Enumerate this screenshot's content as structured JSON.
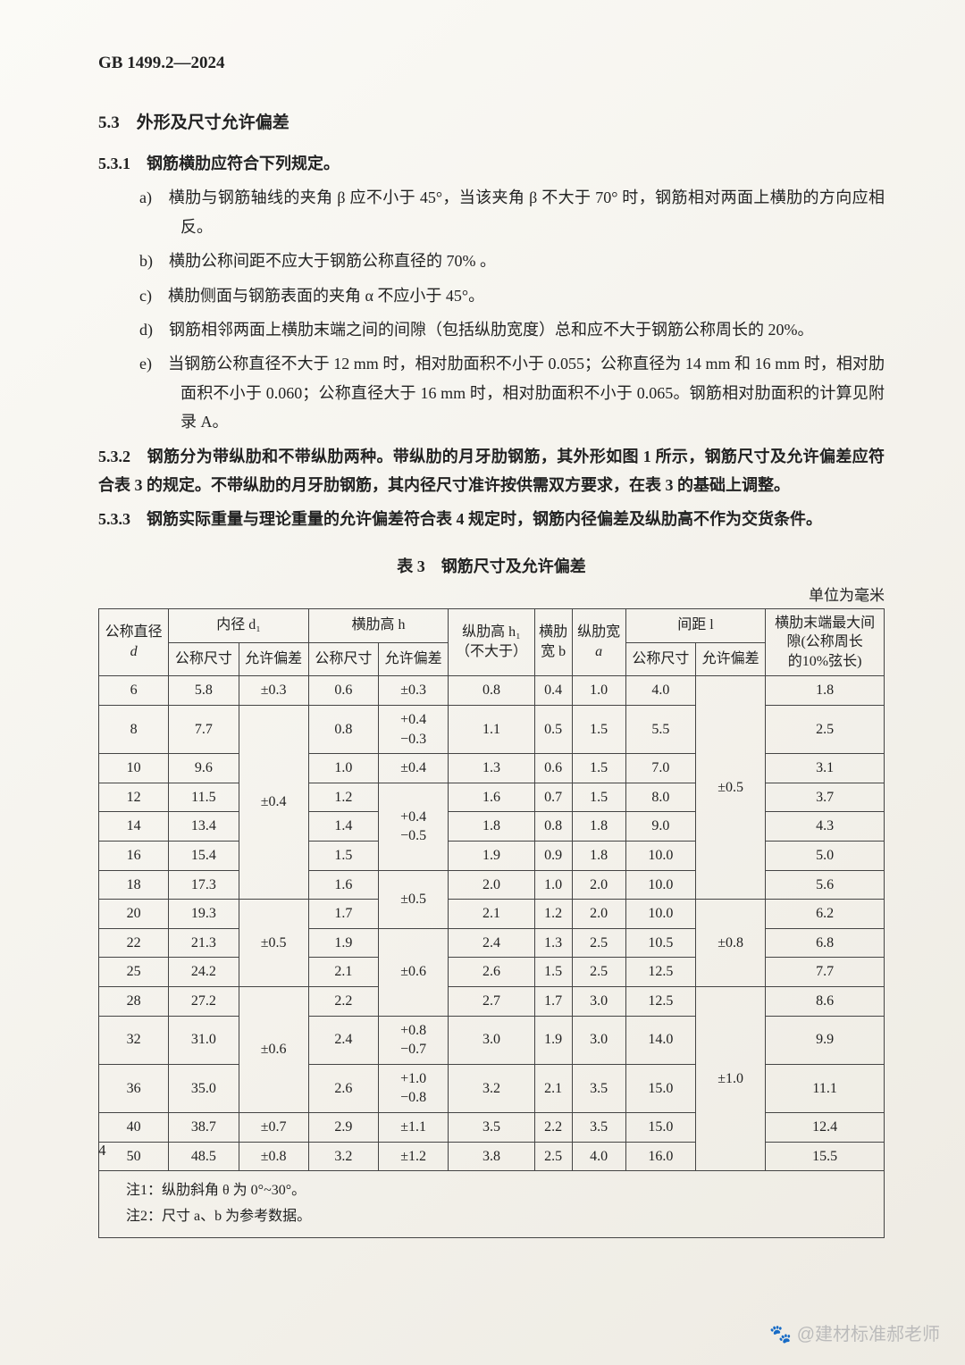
{
  "doc_code": "GB 1499.2—2024",
  "section": {
    "num": "5.3",
    "title": "外形及尺寸允许偏差"
  },
  "p531_lead": "5.3.1　钢筋横肋应符合下列规定。",
  "items": {
    "a": "a)　横肋与钢筋轴线的夹角 β 应不小于 45°，当该夹角 β 不大于 70° 时，钢筋相对两面上横肋的方向应相反。",
    "b": "b)　横肋公称间距不应大于钢筋公称直径的 70% 。",
    "c": "c)　横肋侧面与钢筋表面的夹角 α 不应小于 45°。",
    "d": "d)　钢筋相邻两面上横肋末端之间的间隙（包括纵肋宽度）总和应不大于钢筋公称周长的 20%。",
    "e": "e)　当钢筋公称直径不大于 12 mm 时，相对肋面积不小于 0.055；公称直径为 14 mm 和 16 mm 时，相对肋面积不小于 0.060；公称直径大于 16 mm 时，相对肋面积不小于 0.065。钢筋相对肋面积的计算见附录 A。"
  },
  "p532": "5.3.2　钢筋分为带纵肋和不带纵肋两种。带纵肋的月牙肋钢筋，其外形如图 1 所示，钢筋尺寸及允许偏差应符合表 3 的规定。不带纵肋的月牙肋钢筋，其内径尺寸准许按供需双方要求，在表 3 的基础上调整。",
  "p533": "5.3.3　钢筋实际重量与理论重量的允许偏差符合表 4 规定时，钢筋内径偏差及纵肋高不作为交货条件。",
  "table": {
    "title": "表 3　钢筋尺寸及允许偏差",
    "unit": "单位为毫米",
    "head": {
      "c1": "公称直径",
      "c1sub": "d",
      "c2": "内径 d₁",
      "c2a": "公称尺寸",
      "c2b": "允许偏差",
      "c3": "横肋高 h",
      "c3a": "公称尺寸",
      "c3b": "允许偏差",
      "c4a": "纵肋高 h₁",
      "c4b": "（不大于）",
      "c5a": "横肋",
      "c5b": "宽 b",
      "c6a": "纵肋宽",
      "c6b": "a",
      "c7": "间距 l",
      "c7a": "公称尺寸",
      "c7b": "允许偏差",
      "c8a": "横肋末端最大间",
      "c8b": "隙(公称周长",
      "c8c": "的10%弦长)"
    },
    "tol_d1": {
      "g1": "±0.3",
      "g2": "±0.4",
      "g3": "±0.5",
      "g4": "±0.6",
      "g5": "±0.7",
      "g6": "±0.8"
    },
    "tol_h": {
      "r6": "±0.3",
      "r8": "+0.4\n−0.3",
      "r10": "±0.4",
      "r12_16": "+0.4\n−0.5",
      "r18_20": "±0.5",
      "r22_28": "±0.6",
      "r32": "+0.8\n−0.7",
      "r36": "+1.0\n−0.8",
      "r40": "±1.1",
      "r50": "±1.2"
    },
    "tol_l": {
      "g1": "±0.5",
      "g2": "±0.8",
      "g3": "±1.0"
    },
    "rows": [
      {
        "d": "6",
        "d1": "5.8",
        "h": "0.6",
        "h1": "0.8",
        "b": "0.4",
        "a": "1.0",
        "l": "4.0",
        "gap": "1.8"
      },
      {
        "d": "8",
        "d1": "7.7",
        "h": "0.8",
        "h1": "1.1",
        "b": "0.5",
        "a": "1.5",
        "l": "5.5",
        "gap": "2.5"
      },
      {
        "d": "10",
        "d1": "9.6",
        "h": "1.0",
        "h1": "1.3",
        "b": "0.6",
        "a": "1.5",
        "l": "7.0",
        "gap": "3.1"
      },
      {
        "d": "12",
        "d1": "11.5",
        "h": "1.2",
        "h1": "1.6",
        "b": "0.7",
        "a": "1.5",
        "l": "8.0",
        "gap": "3.7"
      },
      {
        "d": "14",
        "d1": "13.4",
        "h": "1.4",
        "h1": "1.8",
        "b": "0.8",
        "a": "1.8",
        "l": "9.0",
        "gap": "4.3"
      },
      {
        "d": "16",
        "d1": "15.4",
        "h": "1.5",
        "h1": "1.9",
        "b": "0.9",
        "a": "1.8",
        "l": "10.0",
        "gap": "5.0"
      },
      {
        "d": "18",
        "d1": "17.3",
        "h": "1.6",
        "h1": "2.0",
        "b": "1.0",
        "a": "2.0",
        "l": "10.0",
        "gap": "5.6"
      },
      {
        "d": "20",
        "d1": "19.3",
        "h": "1.7",
        "h1": "2.1",
        "b": "1.2",
        "a": "2.0",
        "l": "10.0",
        "gap": "6.2"
      },
      {
        "d": "22",
        "d1": "21.3",
        "h": "1.9",
        "h1": "2.4",
        "b": "1.3",
        "a": "2.5",
        "l": "10.5",
        "gap": "6.8"
      },
      {
        "d": "25",
        "d1": "24.2",
        "h": "2.1",
        "h1": "2.6",
        "b": "1.5",
        "a": "2.5",
        "l": "12.5",
        "gap": "7.7"
      },
      {
        "d": "28",
        "d1": "27.2",
        "h": "2.2",
        "h1": "2.7",
        "b": "1.7",
        "a": "3.0",
        "l": "12.5",
        "gap": "8.6"
      },
      {
        "d": "32",
        "d1": "31.0",
        "h": "2.4",
        "h1": "3.0",
        "b": "1.9",
        "a": "3.0",
        "l": "14.0",
        "gap": "9.9"
      },
      {
        "d": "36",
        "d1": "35.0",
        "h": "2.6",
        "h1": "3.2",
        "b": "2.1",
        "a": "3.5",
        "l": "15.0",
        "gap": "11.1"
      },
      {
        "d": "40",
        "d1": "38.7",
        "h": "2.9",
        "h1": "3.5",
        "b": "2.2",
        "a": "3.5",
        "l": "15.0",
        "gap": "12.4"
      },
      {
        "d": "50",
        "d1": "48.5",
        "h": "3.2",
        "h1": "3.8",
        "b": "2.5",
        "a": "4.0",
        "l": "16.0",
        "gap": "15.5"
      }
    ],
    "note1": "注1：纵肋斜角 θ 为 0°~30°。",
    "note2": "注2：尺寸 a、b 为参考数据。"
  },
  "page_num": "4",
  "watermark": "🐾 @建材标准郝老师"
}
